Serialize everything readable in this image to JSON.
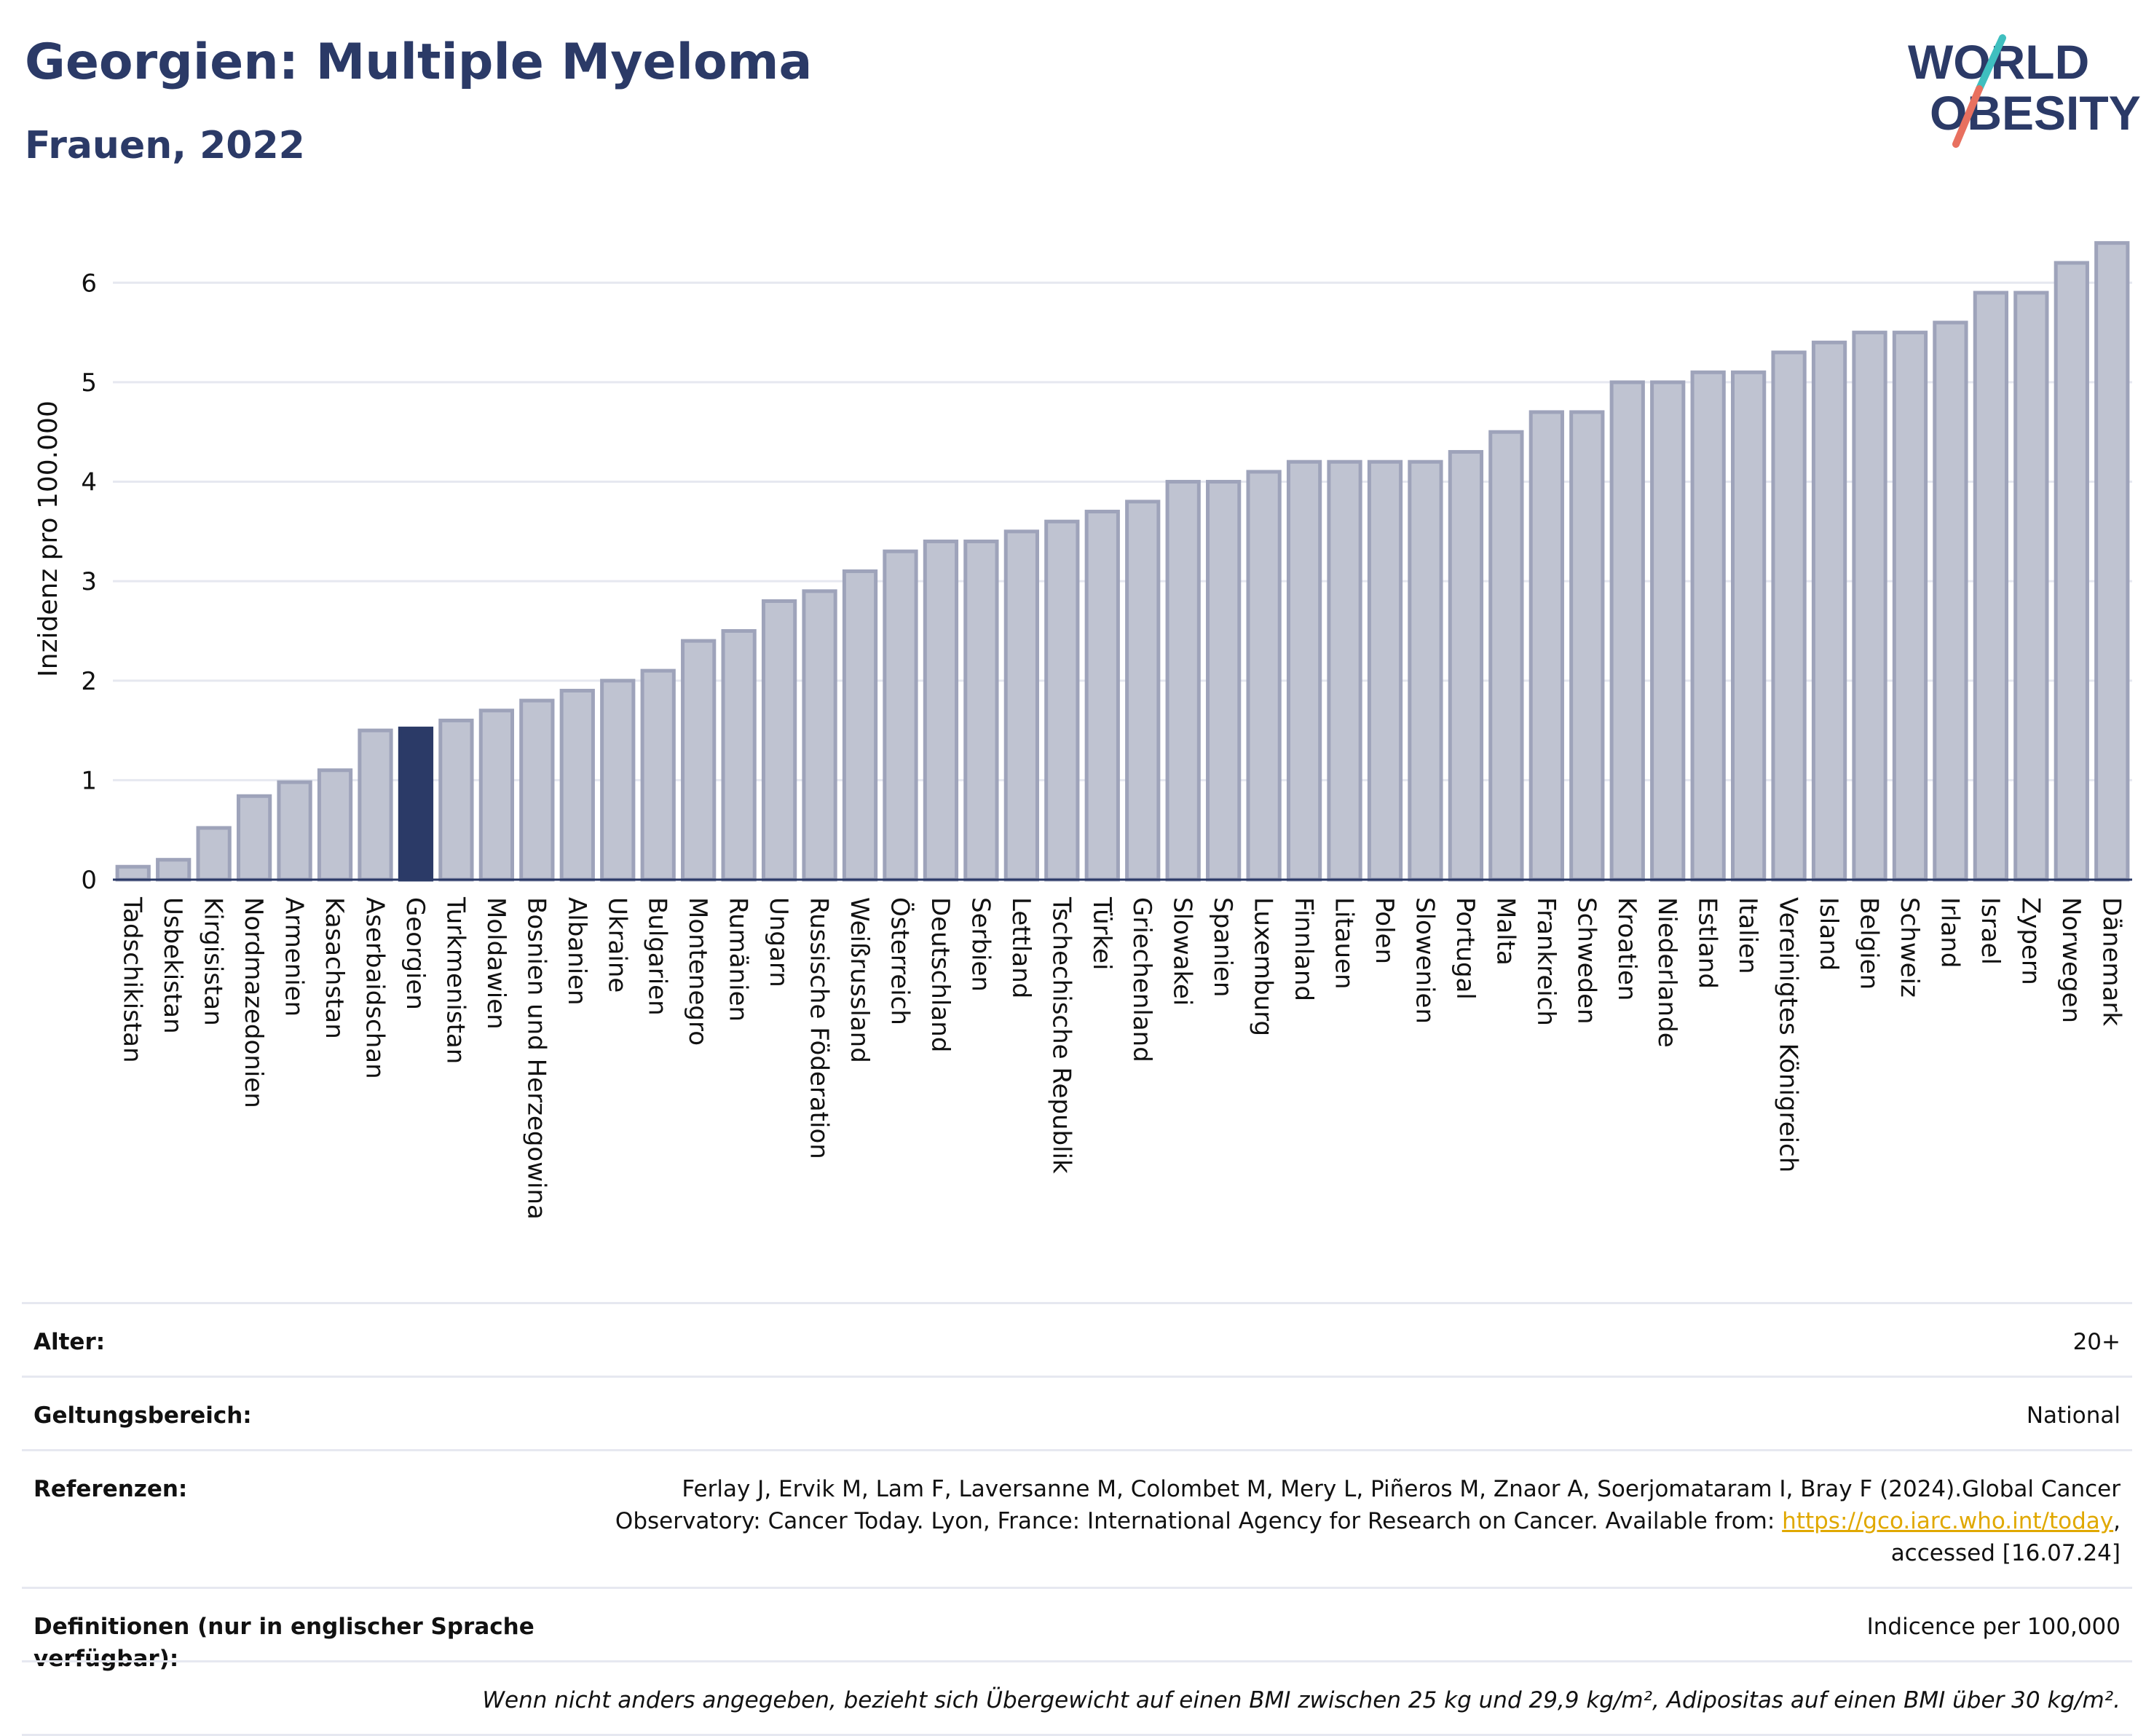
{
  "header": {
    "title": "Georgien: Multiple Myeloma",
    "subtitle": "Frauen, 2022",
    "logo_line1": "WORLD",
    "logo_line2": "OBESITY"
  },
  "colors": {
    "highlight": "#2b3a67",
    "bar_fill": "#bfc3d1",
    "bar_stroke": "#9ea3ba",
    "grid": "#e6e8f0",
    "logo_teal": "#3fbfbf",
    "logo_coral": "#e8705f"
  },
  "chart_data": {
    "type": "bar",
    "ylabel": "Inzidenz pro 100.000",
    "ylim": [
      0,
      6.5
    ],
    "yticks": [
      "0",
      "1",
      "2",
      "3",
      "4",
      "5",
      "6"
    ],
    "highlight": "Georgien",
    "grid": true,
    "categories": [
      "Tadschikistan",
      "Usbekistan",
      "Kirgisistan",
      "Nordmazedonien",
      "Armenien",
      "Kasachstan",
      "Aserbaidschan",
      "Georgien",
      "Turkmenistan",
      "Moldawien",
      "Bosnien und Herzegowina",
      "Albanien",
      "Ukraine",
      "Bulgarien",
      "Montenegro",
      "Rumänien",
      "Ungarn",
      "Russische Föderation",
      "Weißrussland",
      "Österreich",
      "Deutschland",
      "Serbien",
      "Lettland",
      "Tschechische Republik",
      "Türkei",
      "Griechenland",
      "Slowakei",
      "Spanien",
      "Luxemburg",
      "Finnland",
      "Litauen",
      "Polen",
      "Slowenien",
      "Portugal",
      "Malta",
      "Frankreich",
      "Schweden",
      "Kroatien",
      "Niederlande",
      "Estland",
      "Italien",
      "Vereinigtes Königreich",
      "Island",
      "Belgien",
      "Schweiz",
      "Irland",
      "Israel",
      "Zypern",
      "Norwegen",
      "Dänemark"
    ],
    "values": [
      0.13,
      0.2,
      0.52,
      0.84,
      0.98,
      1.1,
      1.5,
      1.52,
      1.6,
      1.7,
      1.8,
      1.9,
      2.0,
      2.1,
      2.4,
      2.5,
      2.8,
      2.9,
      3.1,
      3.3,
      3.4,
      3.4,
      3.5,
      3.6,
      3.7,
      3.8,
      4.0,
      4.0,
      4.1,
      4.2,
      4.2,
      4.2,
      4.2,
      4.3,
      4.5,
      4.7,
      4.7,
      5.0,
      5.0,
      5.1,
      5.1,
      5.3,
      5.4,
      5.5,
      5.5,
      5.6,
      5.9,
      5.9,
      6.2,
      6.4
    ]
  },
  "meta": {
    "age_label": "Alter:",
    "age_value": "20+",
    "scope_label": "Geltungsbereich:",
    "scope_value": "National",
    "ref_label": "Referenzen:",
    "ref_text_1": "Ferlay J, Ervik M, Lam F, Laversanne M, Colombet M, Mery L, Piñeros M, Znaor A, Soerjomataram I, Bray F (2024).Global Cancer Observatory: Cancer Today. Lyon, France: International Agency for Research on Cancer. Available from:",
    "ref_link": "https://gco.iarc.who.int/today",
    "ref_text_2": ", accessed [16.07.24]",
    "def_label": "Definitionen (nur in englischer Sprache verfügbar):",
    "def_value": "Indicence per 100,000",
    "note": "Wenn nicht anders angegeben, bezieht sich Übergewicht auf einen BMI zwischen 25 kg und 29,9 kg/m², Adipositas auf einen BMI über 30 kg/m²."
  }
}
